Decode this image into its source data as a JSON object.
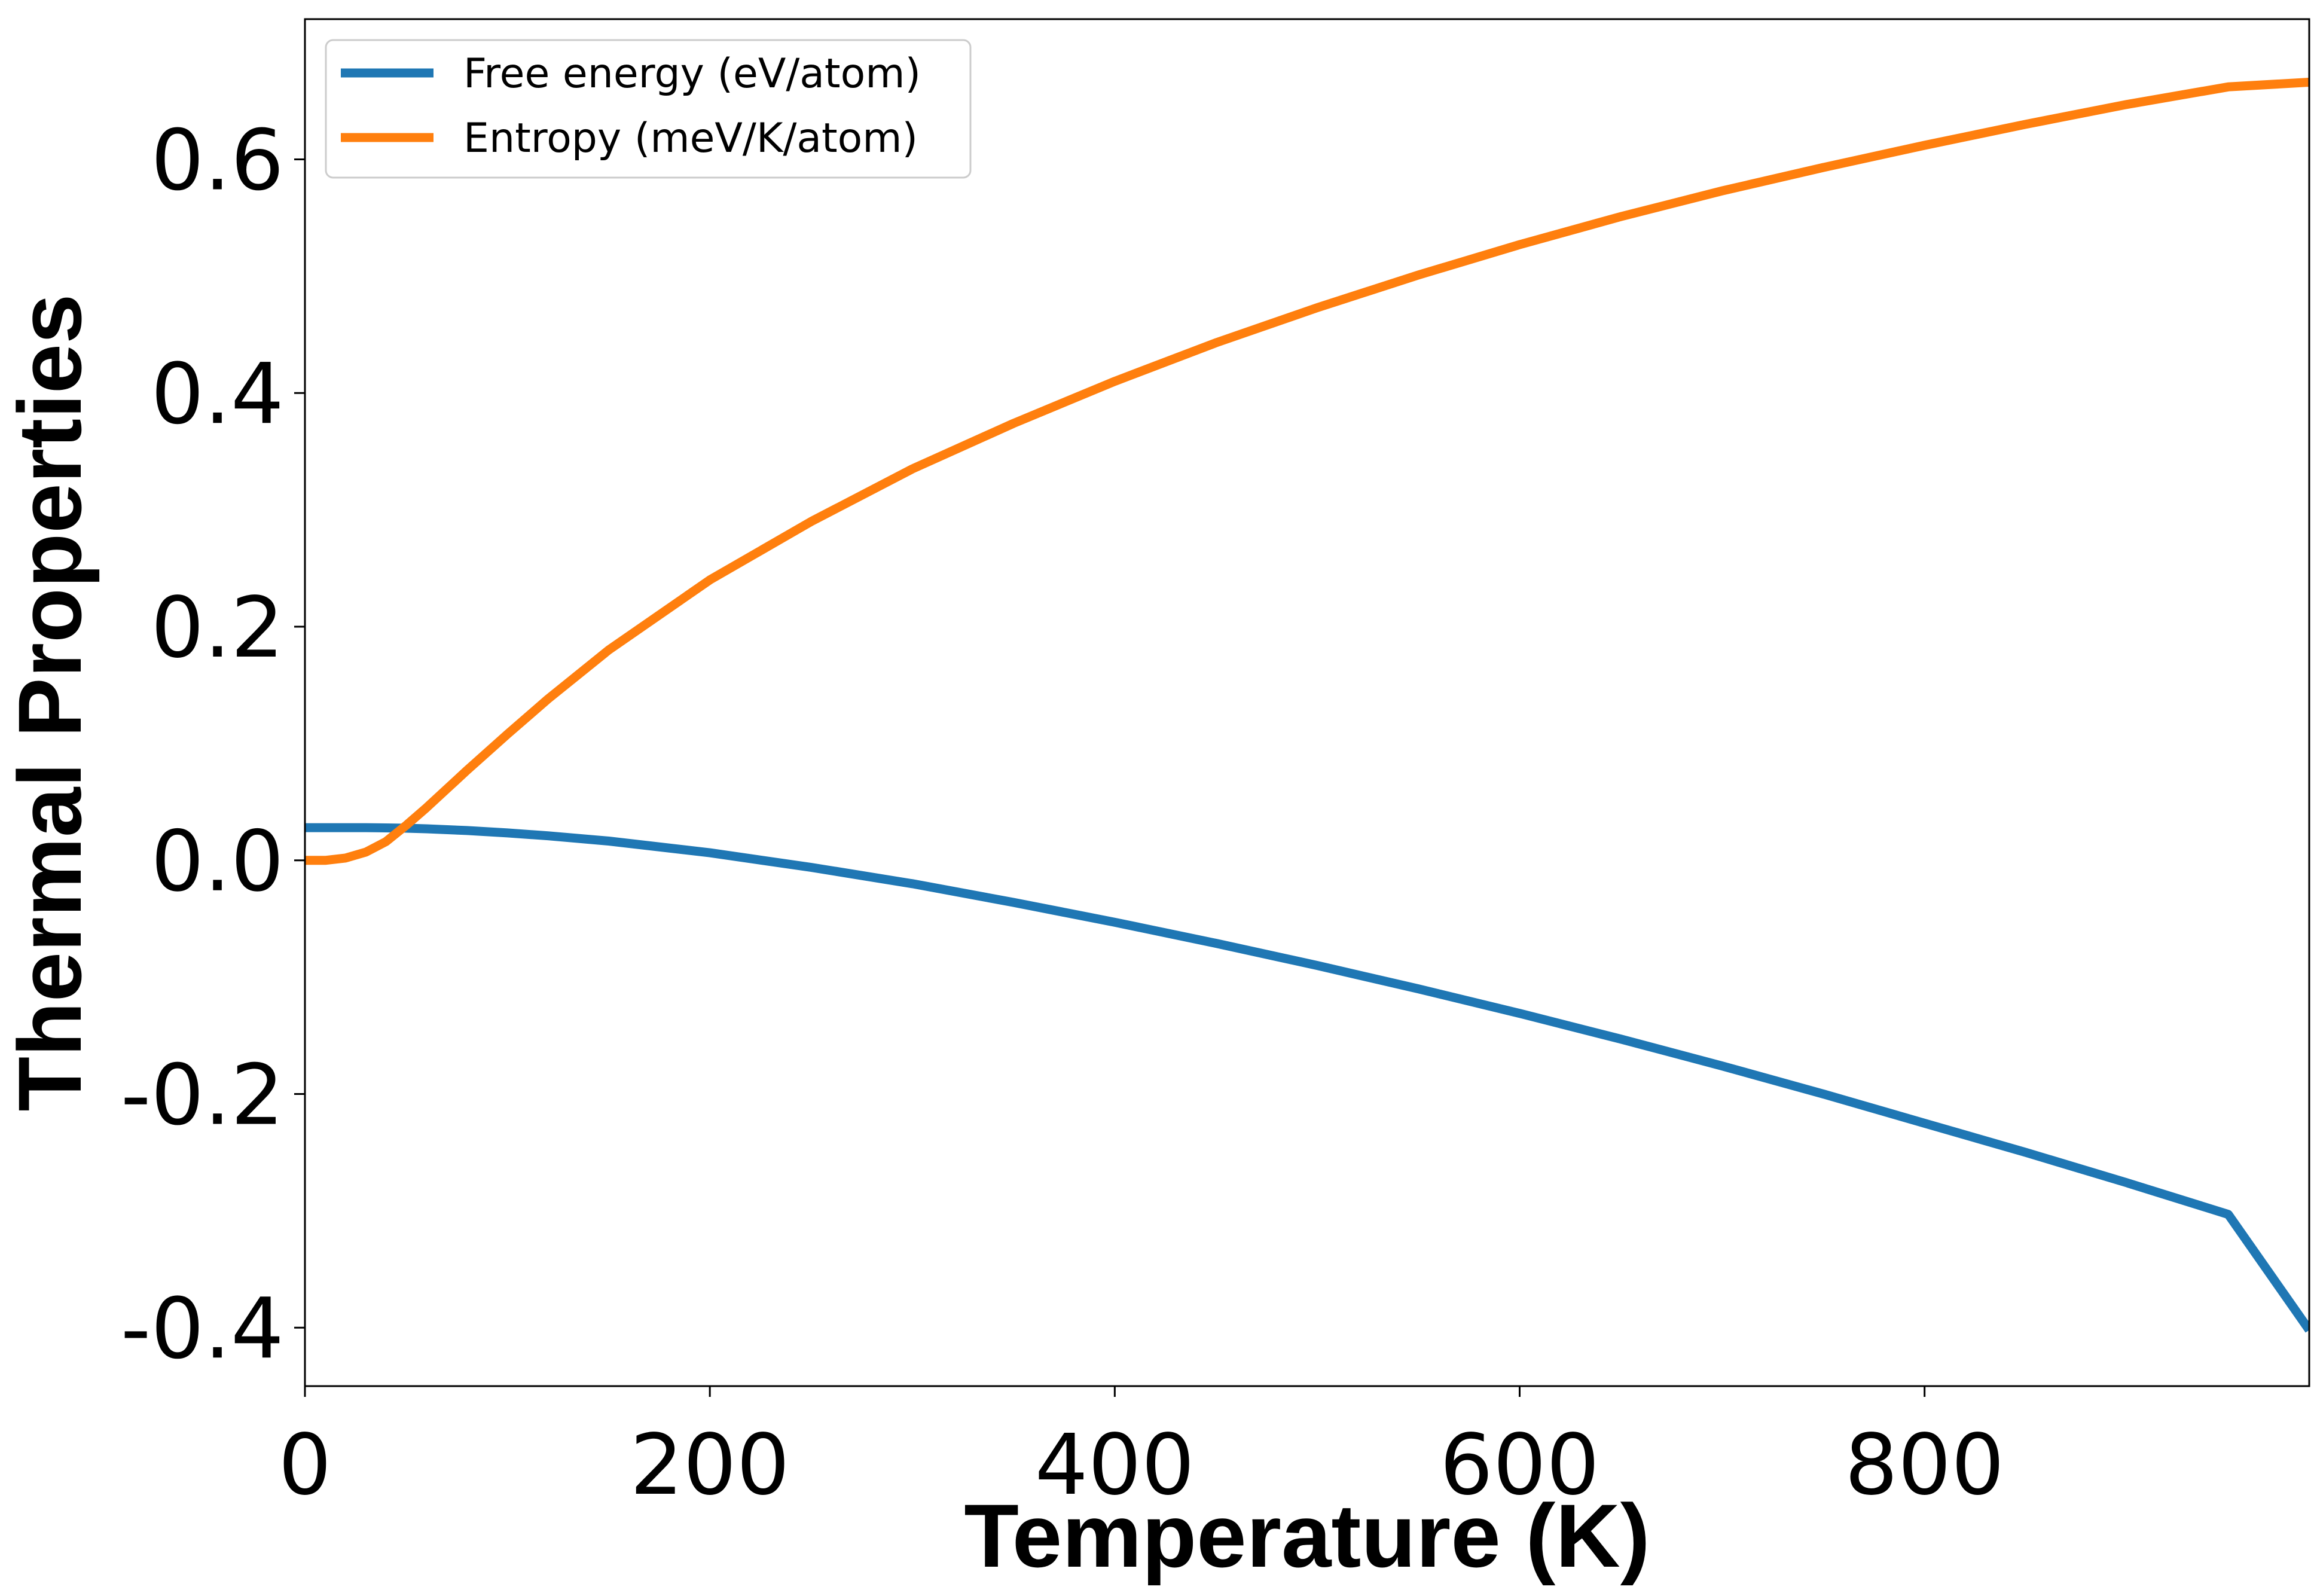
{
  "chart_data": {
    "type": "line",
    "xlabel": "Temperature (K)",
    "ylabel": "Thermal Properties",
    "xlim": [
      0,
      990
    ],
    "ylim": [
      -0.45,
      0.72
    ],
    "x_ticks": [
      0,
      200,
      400,
      600,
      800
    ],
    "x_tick_labels": [
      "0",
      "200",
      "400",
      "600",
      "800"
    ],
    "y_ticks": [
      -0.4,
      -0.2,
      0.0,
      0.2,
      0.4,
      0.6
    ],
    "y_tick_labels": [
      "-0.4",
      "-0.2",
      "0.0",
      "0.2",
      "0.4",
      "0.6"
    ],
    "grid": false,
    "legend_position": "top-left",
    "series": [
      {
        "name": "Free energy (eV/atom)",
        "color": "#1f77b4",
        "x": [
          0,
          10,
          20,
          30,
          40,
          50,
          60,
          80,
          100,
          120,
          150,
          200,
          250,
          300,
          350,
          400,
          450,
          500,
          550,
          600,
          650,
          700,
          750,
          800,
          850,
          900,
          950,
          990
        ],
        "y": [
          0.028,
          0.028,
          0.028,
          0.028,
          0.0278,
          0.0275,
          0.027,
          0.0255,
          0.0235,
          0.021,
          0.0165,
          0.0065,
          -0.006,
          -0.02,
          -0.036,
          -0.053,
          -0.071,
          -0.09,
          -0.11,
          -0.131,
          -0.153,
          -0.176,
          -0.2,
          -0.225,
          -0.25,
          -0.276,
          -0.303,
          -0.402
        ]
      },
      {
        "name": "Entropy (meV/K/atom)",
        "color": "#ff7f0e",
        "x": [
          0,
          10,
          20,
          30,
          40,
          50,
          60,
          80,
          100,
          120,
          150,
          200,
          250,
          300,
          350,
          400,
          450,
          500,
          550,
          600,
          650,
          700,
          750,
          800,
          850,
          900,
          950,
          990
        ],
        "y": [
          0.0,
          0.0,
          0.002,
          0.007,
          0.016,
          0.03,
          0.045,
          0.077,
          0.108,
          0.138,
          0.18,
          0.24,
          0.29,
          0.335,
          0.374,
          0.41,
          0.443,
          0.473,
          0.501,
          0.527,
          0.551,
          0.573,
          0.593,
          0.612,
          0.63,
          0.647,
          0.662,
          0.666
        ]
      }
    ]
  }
}
